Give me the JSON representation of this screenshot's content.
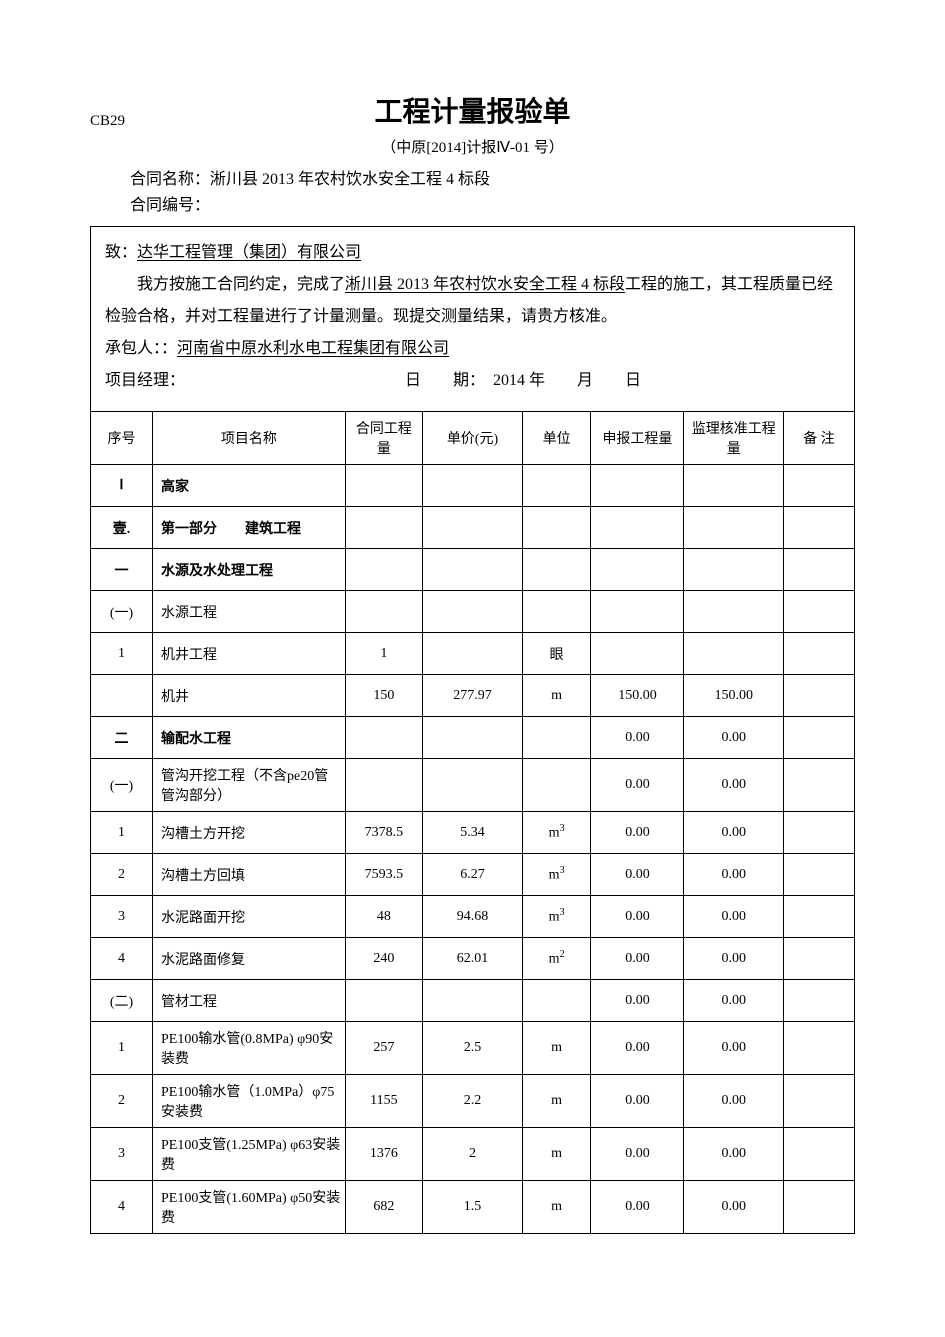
{
  "doc_code": "CB29",
  "title": "工程计量报验单",
  "subtitle": "（中原[2014]计报Ⅳ-01 号）",
  "contract_name_label": "合同名称：",
  "contract_name_value": "淅川县 2013 年农村饮水安全工程 4 标段",
  "contract_no_label": "合同编号：",
  "to_label": "致：",
  "to_company": "达华工程管理（集团）有限公司",
  "para_pre": "我方按施工合同约定，完成了",
  "para_project": "淅川县 2013 年农村饮水安全工程 4 标段",
  "para_post": "工程的施工，其工程质量已经检验合格，并对工程量进行了计量测量。现提交测量结果，请贵方核准。",
  "contractor_label": "承包人：：",
  "contractor_value": "河南省中原水利水电工程集团有限公司",
  "pm_label": "项目经理：",
  "date_label": "日　　期：",
  "date_value": "2014 年　　月　　日",
  "columns": {
    "seq": "序号",
    "name": "项目名称",
    "qty": "合同工程量",
    "price": "单价(元)",
    "unit": "单位",
    "declared": "申报工程量",
    "approved": "监理核准工程量",
    "remark": "备 注"
  },
  "rows": [
    {
      "seq": "Ⅰ",
      "name": "高家",
      "qty": "",
      "price": "",
      "unit": "",
      "declared": "",
      "approved": "",
      "remark": "",
      "bold": true
    },
    {
      "seq": "壹.",
      "name": "第一部分　　建筑工程",
      "qty": "",
      "price": "",
      "unit": "",
      "declared": "",
      "approved": "",
      "remark": "",
      "bold": true
    },
    {
      "seq": "一",
      "name": "水源及水处理工程",
      "qty": "",
      "price": "",
      "unit": "",
      "declared": "",
      "approved": "",
      "remark": "",
      "bold": true
    },
    {
      "seq": "(一)",
      "name": "水源工程",
      "qty": "",
      "price": "",
      "unit": "",
      "declared": "",
      "approved": "",
      "remark": ""
    },
    {
      "seq": "1",
      "name": "机井工程",
      "qty": "1",
      "price": "",
      "unit": "眼",
      "declared": "",
      "approved": "",
      "remark": ""
    },
    {
      "seq": "",
      "name": "机井",
      "qty": "150",
      "price": "277.97",
      "unit": "m",
      "declared": "150.00",
      "approved": "150.00",
      "remark": ""
    },
    {
      "seq": "二",
      "name": "输配水工程",
      "qty": "",
      "price": "",
      "unit": "",
      "declared": "0.00",
      "approved": "0.00",
      "remark": "",
      "bold": true
    },
    {
      "seq": "(一)",
      "name": "管沟开挖工程（不含pe20管管沟部分）",
      "qty": "",
      "price": "",
      "unit": "",
      "declared": "0.00",
      "approved": "0.00",
      "remark": ""
    },
    {
      "seq": "1",
      "name": "沟槽土方开挖",
      "qty": "7378.5",
      "price": "5.34",
      "unit": "m³",
      "declared": "0.00",
      "approved": "0.00",
      "remark": ""
    },
    {
      "seq": "2",
      "name": "沟槽土方回填",
      "qty": "7593.5",
      "price": "6.27",
      "unit": "m³",
      "declared": "0.00",
      "approved": "0.00",
      "remark": ""
    },
    {
      "seq": "3",
      "name": "水泥路面开挖",
      "qty": "48",
      "price": "94.68",
      "unit": "m³",
      "declared": "0.00",
      "approved": "0.00",
      "remark": ""
    },
    {
      "seq": "4",
      "name": "水泥路面修复",
      "qty": "240",
      "price": "62.01",
      "unit": "m²",
      "declared": "0.00",
      "approved": "0.00",
      "remark": ""
    },
    {
      "seq": "(二)",
      "name": "管材工程",
      "qty": "",
      "price": "",
      "unit": "",
      "declared": "0.00",
      "approved": "0.00",
      "remark": ""
    },
    {
      "seq": "1",
      "name": "PE100输水管(0.8MPa) φ90安装费",
      "qty": "257",
      "price": "2.5",
      "unit": "m",
      "declared": "0.00",
      "approved": "0.00",
      "remark": ""
    },
    {
      "seq": "2",
      "name": "PE100输水管（1.0MPa）φ75安装费",
      "qty": "1155",
      "price": "2.2",
      "unit": "m",
      "declared": "0.00",
      "approved": "0.00",
      "remark": ""
    },
    {
      "seq": "3",
      "name": "PE100支管(1.25MPa) φ63安装费",
      "qty": "1376",
      "price": "2",
      "unit": "m",
      "declared": "0.00",
      "approved": "0.00",
      "remark": ""
    },
    {
      "seq": "4",
      "name": "PE100支管(1.60MPa) φ50安装费",
      "qty": "682",
      "price": "1.5",
      "unit": "m",
      "declared": "0.00",
      "approved": "0.00",
      "remark": ""
    }
  ]
}
